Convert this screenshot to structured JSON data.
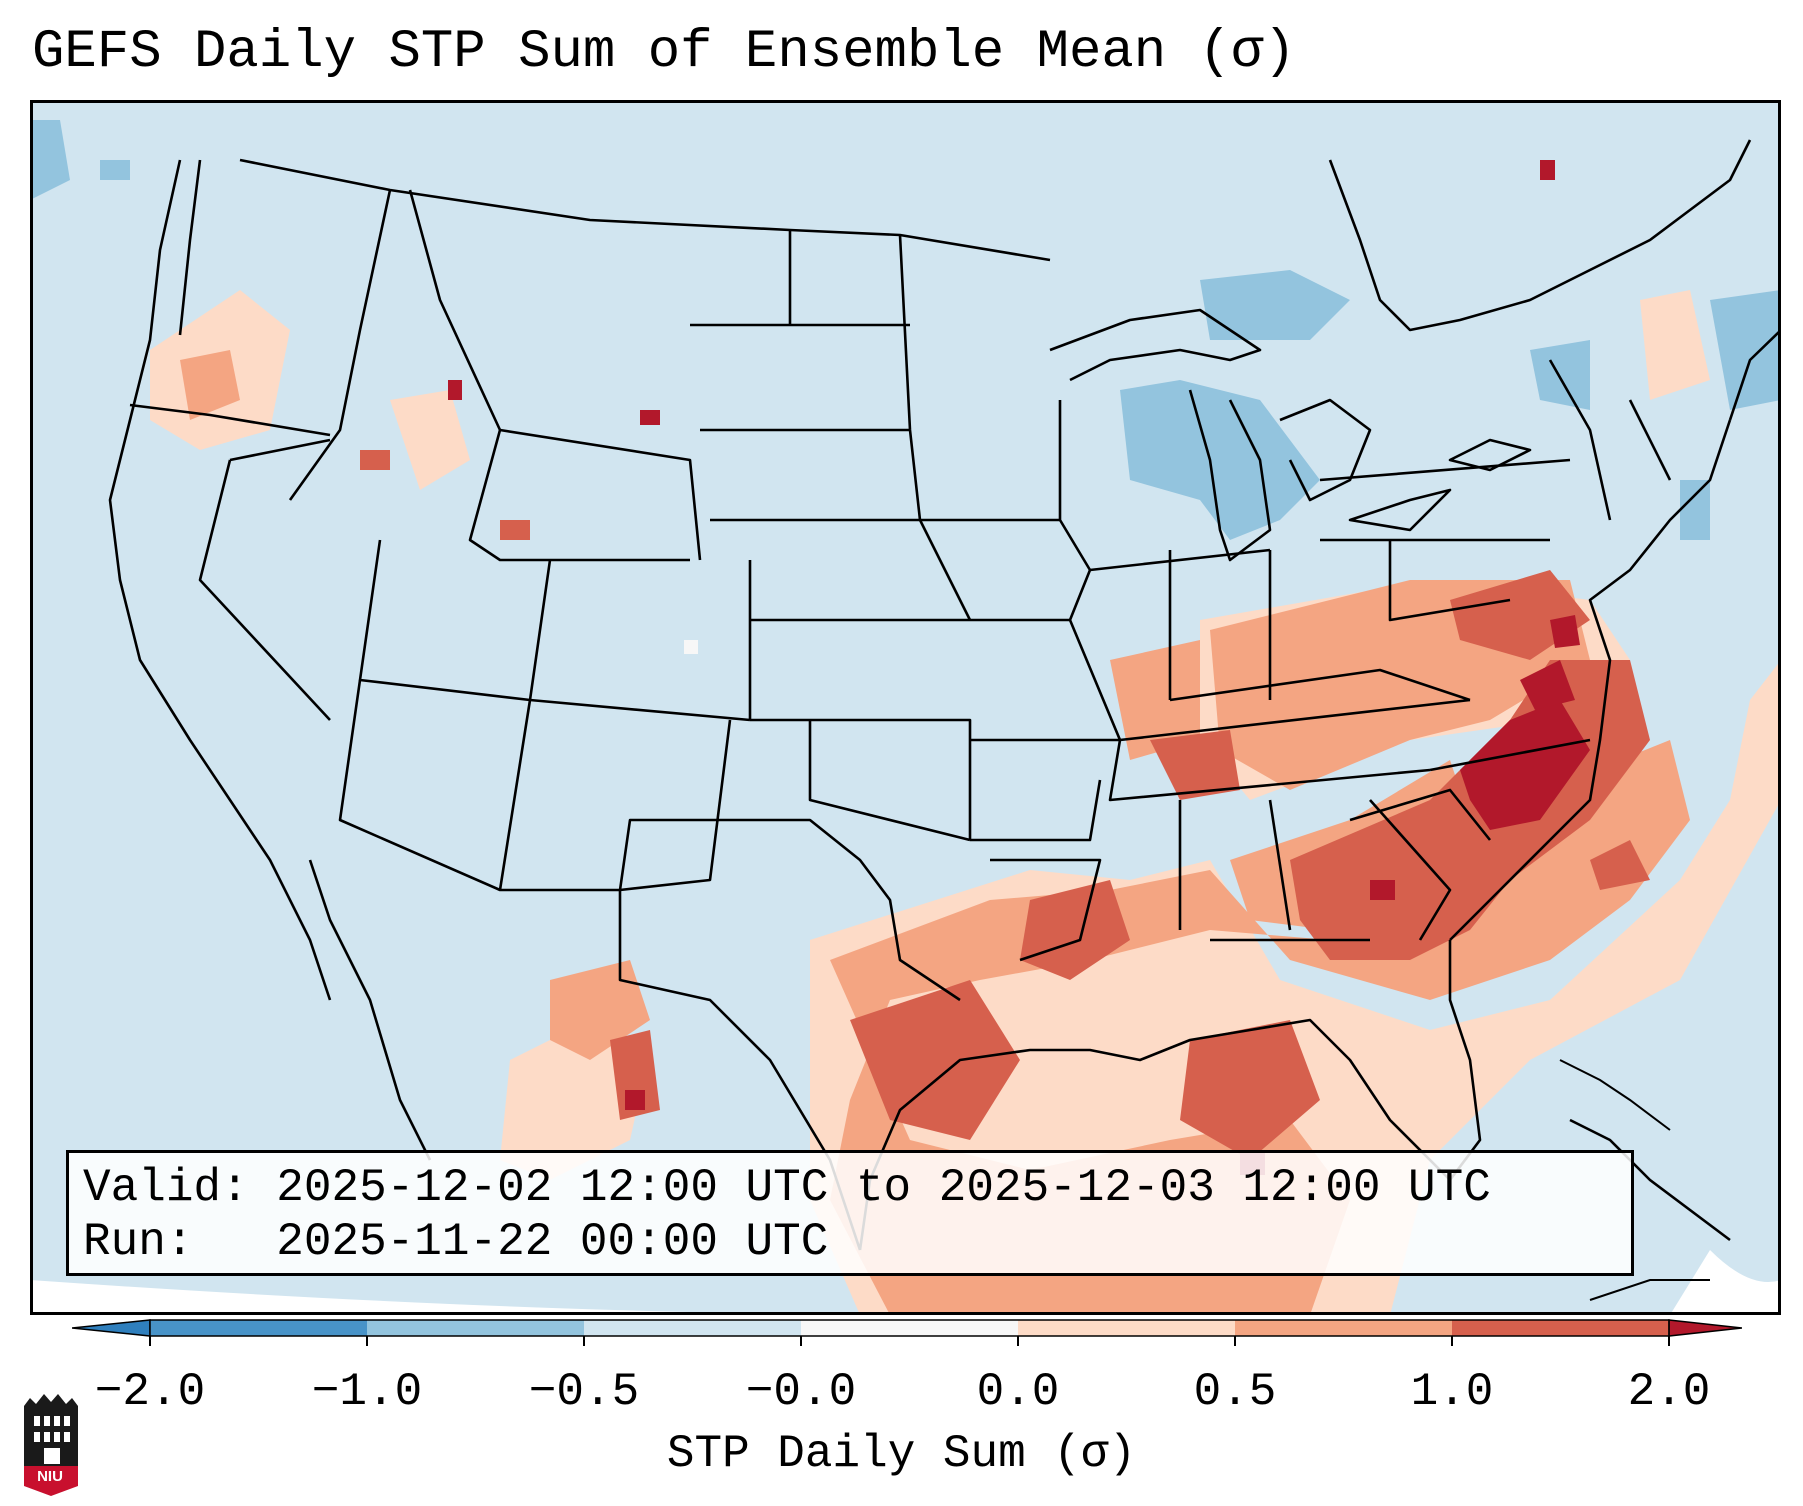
{
  "title": "GEFS Daily STP Sum of Ensemble Mean (σ)",
  "info": {
    "valid_label": "Valid:",
    "valid_value": "2025-12-02 12:00 UTC to 2025-12-03 12:00 UTC",
    "run_label": "Run:",
    "run_value": "2025-11-22 00:00 UTC"
  },
  "colorbar": {
    "label": "STP Daily Sum (σ)",
    "ticks": [
      "−2.0",
      "−1.0",
      "−0.5",
      "−0.0",
      "0.0",
      "0.5",
      "1.0",
      "2.0"
    ],
    "colors": {
      "below_min": "#2f7fbd",
      "bin_neg2_neg1": "#4893c8",
      "bin_neg1_neg05": "#93c4de",
      "bin_neg05_0": "#d1e5f0",
      "bin_zero": "#f7f7f7",
      "bin_0_05": "#fddbc7",
      "bin_05_1": "#f4a582",
      "bin_1_2": "#d6604d",
      "above_max": "#b2182b"
    }
  },
  "map": {
    "background": "#d1e5f0",
    "region": "Contiguous United States",
    "features": [
      "state-borders",
      "country-borders",
      "coastlines",
      "great-lakes"
    ]
  },
  "logo": {
    "text": "NIU"
  }
}
